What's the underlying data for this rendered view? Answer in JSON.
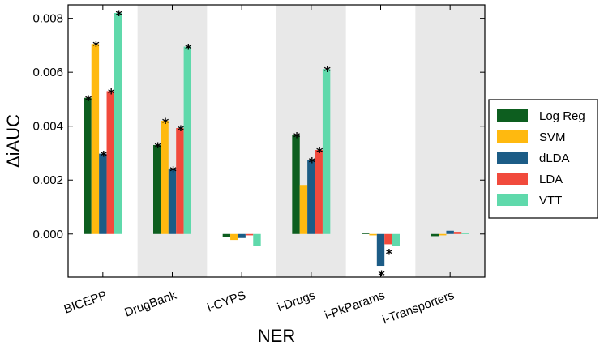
{
  "chart_data": {
    "type": "bar",
    "title": "",
    "xlabel": "NER",
    "ylabel": "ΔiAUC",
    "ylim": [
      -0.0016,
      0.0085
    ],
    "yticks": [
      0.0,
      0.002,
      0.004,
      0.006,
      0.008
    ],
    "ytick_labels": [
      "0.000",
      "0.002",
      "0.004",
      "0.006",
      "0.008"
    ],
    "categories": [
      "BICEPP",
      "DrugBank",
      "i-CYPS",
      "i-Drugs",
      "i-PkParams",
      "i-Transporters"
    ],
    "shaded_categories": [
      "DrugBank",
      "i-Drugs",
      "i-Transporters"
    ],
    "shade_color": "#e8e8e8",
    "legend_position": "right",
    "significance_marker": "*",
    "series": [
      {
        "name": "Log Reg",
        "color": "#0d5e1f",
        "values": [
          0.00505,
          0.0033,
          -0.00012,
          0.00368,
          5e-05,
          -8e-05
        ],
        "significant": [
          true,
          true,
          false,
          true,
          false,
          false
        ]
      },
      {
        "name": "SVM",
        "color": "#ffb90f",
        "values": [
          0.00705,
          0.0042,
          -0.00022,
          0.00182,
          -5e-05,
          -5e-05
        ],
        "significant": [
          true,
          true,
          false,
          false,
          false,
          false
        ]
      },
      {
        "name": "dLDA",
        "color": "#1c5c86",
        "values": [
          0.00298,
          0.00242,
          -0.00015,
          0.00275,
          -0.00118,
          0.00012
        ],
        "significant": [
          true,
          true,
          false,
          true,
          true,
          false
        ]
      },
      {
        "name": "LDA",
        "color": "#f14a3c",
        "values": [
          0.0053,
          0.00393,
          -5e-05,
          0.00312,
          -0.00038,
          8e-05
        ],
        "significant": [
          true,
          true,
          false,
          true,
          true,
          false
        ]
      },
      {
        "name": "VTT",
        "color": "#5fd9ab",
        "values": [
          0.0082,
          0.00695,
          -0.00045,
          0.00612,
          -0.00045,
          2e-05
        ],
        "significant": [
          true,
          true,
          false,
          true,
          false,
          false
        ]
      }
    ]
  }
}
